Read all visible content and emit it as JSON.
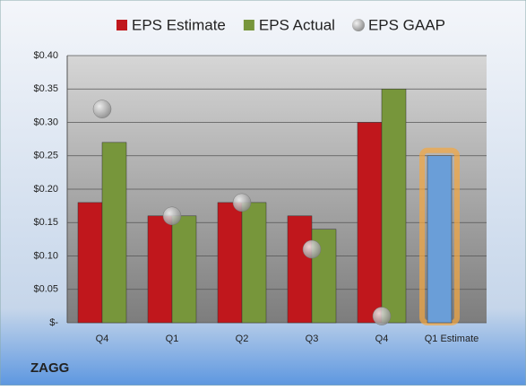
{
  "chart_data": {
    "type": "bar",
    "categories": [
      "Q4",
      "Q1",
      "Q2",
      "Q3",
      "Q4",
      "Q1 Estimate"
    ],
    "series": [
      {
        "name": "EPS Estimate",
        "color": "#c0171c",
        "values": [
          0.18,
          0.16,
          0.18,
          0.16,
          0.3,
          0.25
        ],
        "highlight_index": 5,
        "highlight_color": "#6a9ed8"
      },
      {
        "name": "EPS Actual",
        "color": "#77963b",
        "values": [
          0.27,
          0.16,
          0.18,
          0.14,
          0.35,
          null
        ]
      },
      {
        "name": "EPS GAAP",
        "color": "#a8a8a8",
        "mark": "circle",
        "values": [
          0.32,
          0.16,
          0.18,
          0.11,
          0.01,
          null
        ]
      }
    ],
    "ylim": [
      0,
      0.4
    ],
    "yticks": [
      {
        "value": 0,
        "label": "$-"
      },
      {
        "value": 0.05,
        "label": "$0.05"
      },
      {
        "value": 0.1,
        "label": "$0.10"
      },
      {
        "value": 0.15,
        "label": "$0.15"
      },
      {
        "value": 0.2,
        "label": "$0.20"
      },
      {
        "value": 0.25,
        "label": "$0.25"
      },
      {
        "value": 0.3,
        "label": "$0.30"
      },
      {
        "value": 0.35,
        "label": "$0.35"
      },
      {
        "value": 0.4,
        "label": "$0.40"
      }
    ],
    "grid": true,
    "legend": "top",
    "footer": "ZAGG"
  }
}
